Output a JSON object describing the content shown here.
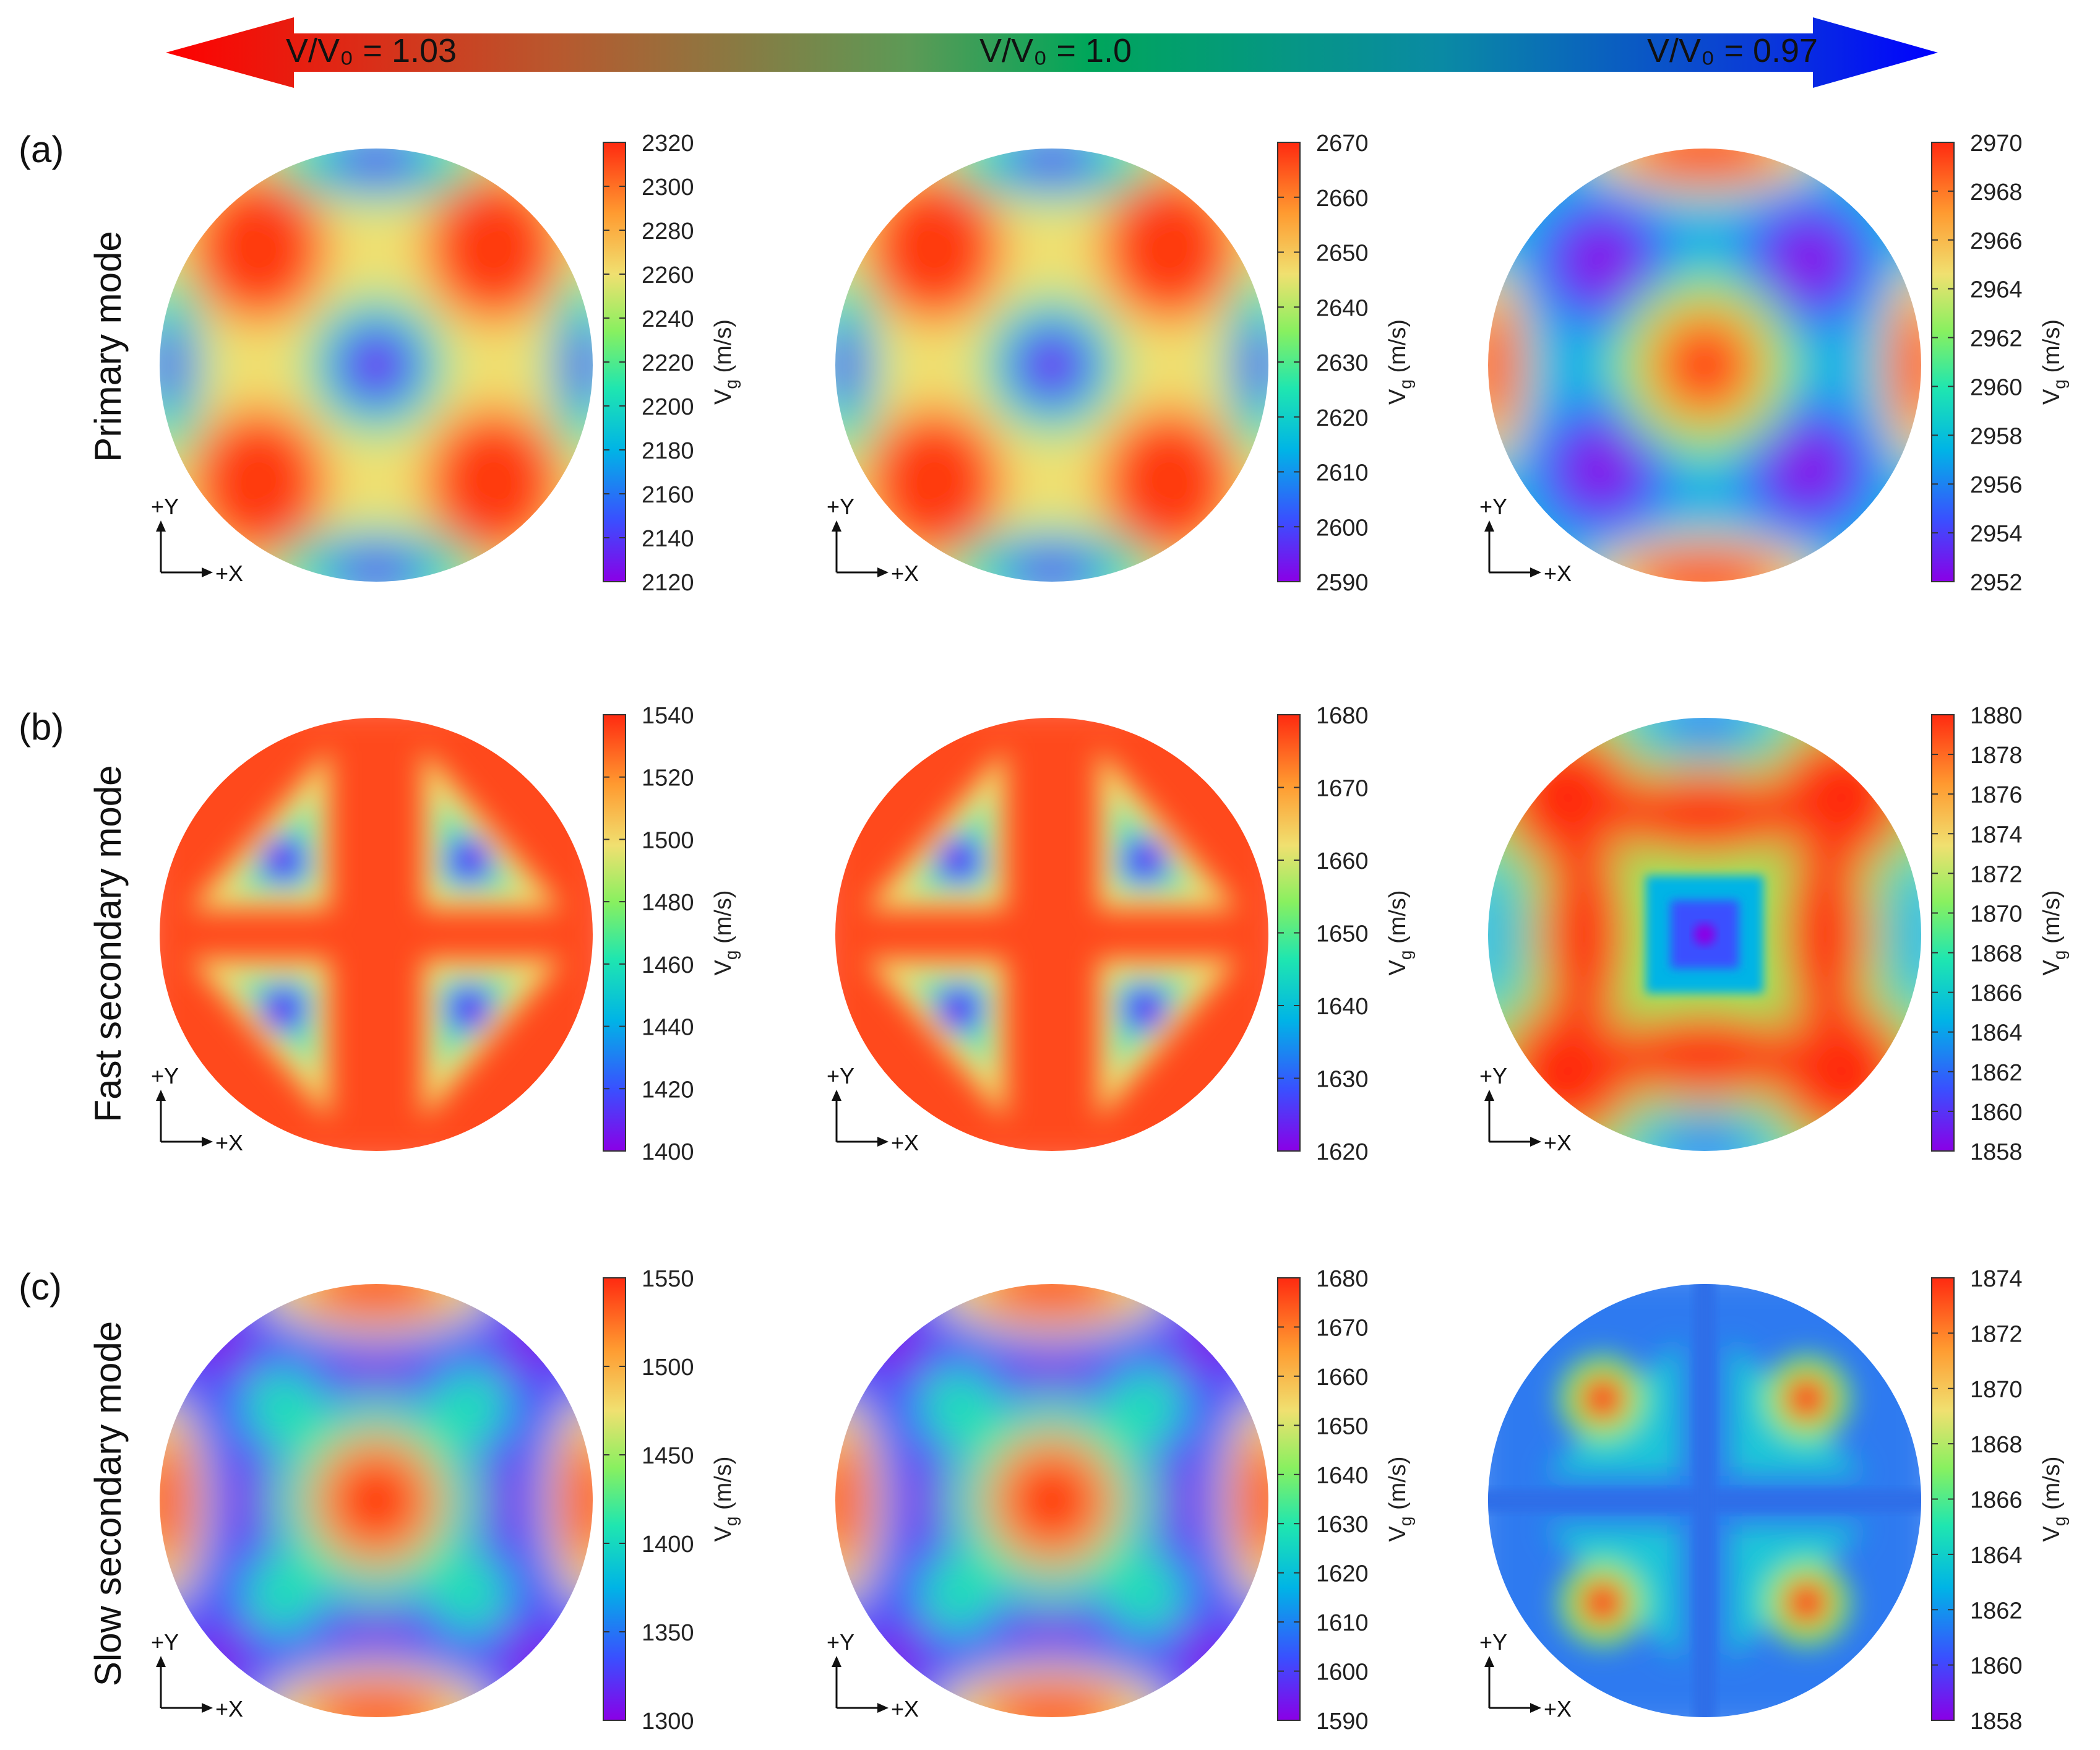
{
  "header": {
    "left_label": "V/V₀ = 1.03",
    "center_label": "V/V₀ = 1.0",
    "right_label": "V/V₀ = 0.97",
    "colors": [
      "#ff0000",
      "#00a65a",
      "#0000ff"
    ]
  },
  "axes_labels": {
    "y": "+Y",
    "x": "+X"
  },
  "colorbar_label": {
    "main": "V",
    "sub": "g",
    "unit": "(m/s)"
  },
  "colormap": [
    "#8a00e6",
    "#3a4fff",
    "#00b4e6",
    "#1fe6b0",
    "#88f060",
    "#f0e070",
    "#ff9a30",
    "#ff2a10"
  ],
  "rows": [
    {
      "letter": "(a)",
      "mode_label": "Primary mode",
      "panels": [
        {
          "pattern": "primary_a",
          "ticks": [
            "2320",
            "2300",
            "2280",
            "2260",
            "2240",
            "2220",
            "2200",
            "2180",
            "2160",
            "2140",
            "2120"
          ]
        },
        {
          "pattern": "primary_a",
          "ticks": [
            "2670",
            "2660",
            "2650",
            "2640",
            "2630",
            "2620",
            "2610",
            "2600",
            "2590"
          ]
        },
        {
          "pattern": "primary_c",
          "ticks": [
            "2970",
            "2968",
            "2966",
            "2964",
            "2962",
            "2960",
            "2958",
            "2956",
            "2954",
            "2952"
          ]
        }
      ]
    },
    {
      "letter": "(b)",
      "mode_label": "Fast secondary mode",
      "panels": [
        {
          "pattern": "fast_ab",
          "ticks": [
            "1540",
            "1520",
            "1500",
            "1480",
            "1460",
            "1440",
            "1420",
            "1400"
          ]
        },
        {
          "pattern": "fast_ab",
          "ticks": [
            "1680",
            "1670",
            "1660",
            "1650",
            "1640",
            "1630",
            "1620"
          ]
        },
        {
          "pattern": "fast_c",
          "ticks": [
            "1880",
            "1878",
            "1876",
            "1874",
            "1872",
            "1870",
            "1868",
            "1866",
            "1864",
            "1862",
            "1860",
            "1858"
          ]
        }
      ]
    },
    {
      "letter": "(c)",
      "mode_label": "Slow secondary mode",
      "panels": [
        {
          "pattern": "slow_ab",
          "ticks": [
            "1550",
            "1500",
            "1450",
            "1400",
            "1350",
            "1300"
          ]
        },
        {
          "pattern": "slow_ab",
          "ticks": [
            "1680",
            "1670",
            "1660",
            "1650",
            "1640",
            "1630",
            "1620",
            "1610",
            "1600",
            "1590"
          ]
        },
        {
          "pattern": "slow_c",
          "ticks": [
            "1874",
            "1872",
            "1870",
            "1868",
            "1866",
            "1864",
            "1862",
            "1860",
            "1858"
          ]
        }
      ]
    }
  ],
  "chart_data": {
    "type": "heatmap",
    "rows": [
      "Primary mode",
      "Fast secondary mode",
      "Slow secondary mode"
    ],
    "columns": [
      "V/V₀ = 1.03",
      "V/V₀ = 1.0",
      "V/V₀ = 0.97"
    ],
    "colorbar_ranges": [
      [
        [
          2120,
          2320
        ],
        [
          2590,
          2670
        ],
        [
          2952,
          2970
        ]
      ],
      [
        [
          1400,
          1540
        ],
        [
          1620,
          1680
        ],
        [
          1858,
          1880
        ]
      ],
      [
        [
          1300,
          1550
        ],
        [
          1590,
          1680
        ],
        [
          1858,
          1874
        ]
      ]
    ]
  }
}
